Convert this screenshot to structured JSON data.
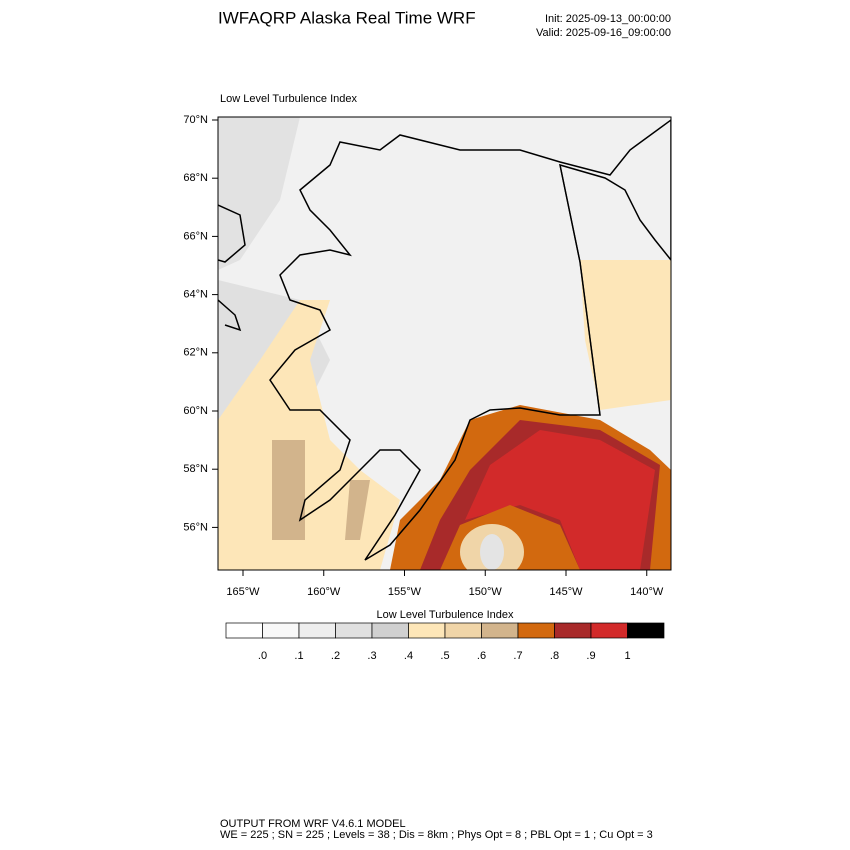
{
  "header": {
    "title": "IWFAQRP Alaska Real Time WRF",
    "init": "Init: 2025-09-13_00:00:00",
    "valid": "Valid: 2025-09-16_09:00:00"
  },
  "map": {
    "title": "Low Level Turbulence Index",
    "lat_ticks": [
      {
        "value": 70,
        "label": "70°N"
      },
      {
        "value": 68,
        "label": "68°N"
      },
      {
        "value": 66,
        "label": "66°N"
      },
      {
        "value": 64,
        "label": "64°N"
      },
      {
        "value": 62,
        "label": "62°N"
      },
      {
        "value": 60,
        "label": "60°N"
      },
      {
        "value": 58,
        "label": "58°N"
      },
      {
        "value": 56,
        "label": "56°N"
      }
    ],
    "lon_ticks": [
      {
        "value": -165,
        "label": "165°W"
      },
      {
        "value": -160,
        "label": "160°W"
      },
      {
        "value": -155,
        "label": "155°W"
      },
      {
        "value": -150,
        "label": "150°W"
      },
      {
        "value": -145,
        "label": "145°W"
      },
      {
        "value": -140,
        "label": "140°W"
      }
    ]
  },
  "colorbar": {
    "title": "Low Level Turbulence Index",
    "colors": [
      "#ffffff",
      "#f8f8f8",
      "#eeeeee",
      "#e0e0e0",
      "#d0d0d0",
      "#fde6b8",
      "#f0d5a8",
      "#d2b48c",
      "#d2690f",
      "#a82a2a",
      "#d22a2a",
      "#000000"
    ],
    "levels": [
      {
        "value": 0,
        "label": ".0"
      },
      {
        "value": 0.1,
        "label": ".1"
      },
      {
        "value": 0.2,
        "label": ".2"
      },
      {
        "value": 0.3,
        "label": ".3"
      },
      {
        "value": 0.4,
        "label": ".4"
      },
      {
        "value": 0.5,
        "label": ".5"
      },
      {
        "value": 0.6,
        "label": ".6"
      },
      {
        "value": 0.7,
        "label": ".7"
      },
      {
        "value": 0.8,
        "label": ".8"
      },
      {
        "value": 0.9,
        "label": ".9"
      },
      1
    ]
  },
  "footer": {
    "line1": "OUTPUT FROM WRF V4.6.1 MODEL",
    "line2": "WE = 225 ; SN = 225 ; Levels = 38 ; Dis = 8km ; Phys Opt = 8 ; PBL Opt = 1 ; Cu Opt = 3"
  }
}
